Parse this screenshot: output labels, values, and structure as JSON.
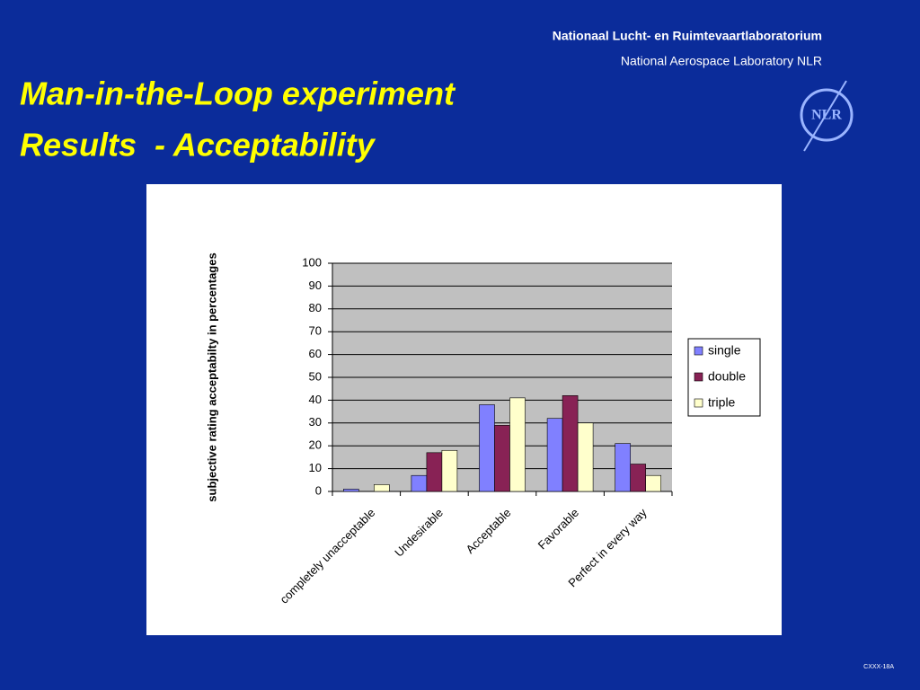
{
  "header": {
    "org_nl": "Nationaal Lucht- en Ruimtevaartlaboratorium",
    "org_en": "National Aerospace Laboratory NLR",
    "logo": "NLR"
  },
  "title": [
    "Man-in-the-Loop experiment",
    "Results  - Acceptability"
  ],
  "footer": "CXXX-18A",
  "chart_data": {
    "type": "bar",
    "ylabel": "subjective rating acceptabilty in percentages",
    "categories": [
      "completely unacceptable",
      "Undesirable",
      "Acceptable",
      "Favorable",
      "Perfect in every way"
    ],
    "series": [
      {
        "name": "single",
        "color": "#8080ff",
        "values": [
          1,
          7,
          38,
          32,
          21
        ]
      },
      {
        "name": "double",
        "color": "#882255",
        "values": [
          0,
          17,
          29,
          42,
          12
        ]
      },
      {
        "name": "triple",
        "color": "#ffffcc",
        "values": [
          3,
          18,
          41,
          30,
          7
        ]
      }
    ],
    "ylim": [
      0,
      100
    ],
    "yticks": [
      0,
      10,
      20,
      30,
      40,
      50,
      60,
      70,
      80,
      90,
      100
    ],
    "grid": true,
    "legend": "right"
  }
}
